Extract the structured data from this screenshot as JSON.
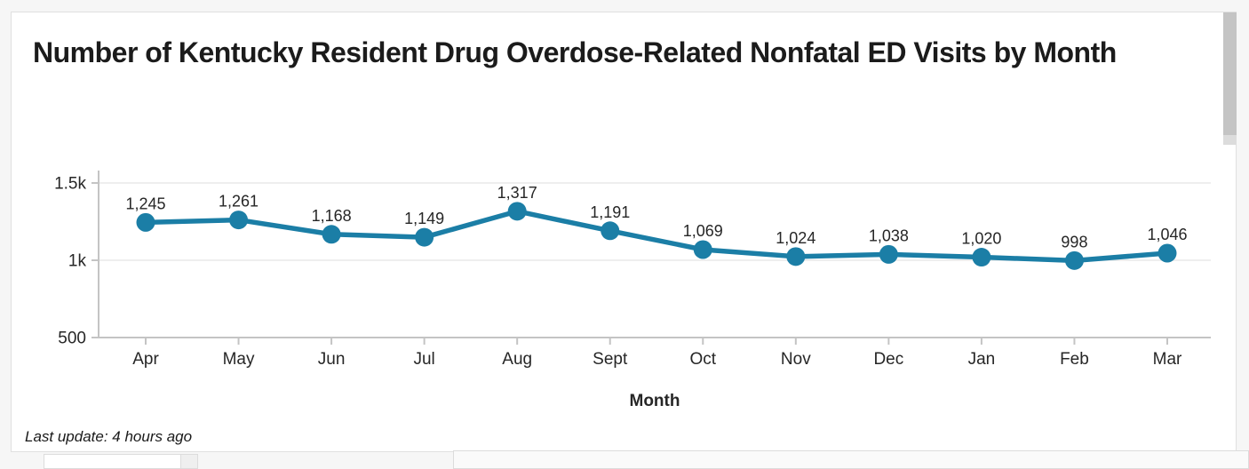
{
  "title": "Number of Kentucky Resident Drug Overdose-Related Nonfatal ED Visits by Month",
  "footer": {
    "last_update": "Last update: 4 hours ago"
  },
  "chart_data": {
    "type": "line",
    "title": "Number of Kentucky Resident Drug Overdose-Related Nonfatal ED Visits by Month",
    "categories": [
      "Apr",
      "May",
      "Jun",
      "Jul",
      "Aug",
      "Sept",
      "Oct",
      "Nov",
      "Dec",
      "Jan",
      "Feb",
      "Mar"
    ],
    "values": [
      1245,
      1261,
      1168,
      1149,
      1317,
      1191,
      1069,
      1024,
      1038,
      1020,
      998,
      1046
    ],
    "value_labels": [
      "1,245",
      "1,261",
      "1,168",
      "1,149",
      "1,317",
      "1,191",
      "1,069",
      "1,024",
      "1,038",
      "1,020",
      "998",
      "1,046"
    ],
    "xlabel": "Month",
    "ylabel": "",
    "ylim": [
      500,
      1500
    ],
    "y_ticks": [
      {
        "label": "1.5k",
        "value": 1500
      },
      {
        "label": "1k",
        "value": 1000
      },
      {
        "label": "500",
        "value": 500
      }
    ],
    "grid": "horizontal",
    "legend": "none",
    "line_color": "#1b7ea6",
    "point_color": "#1b7ea6",
    "label_color": "#262626",
    "axis_color": "#c4c4c4",
    "grid_color": "#e8e8e8"
  }
}
